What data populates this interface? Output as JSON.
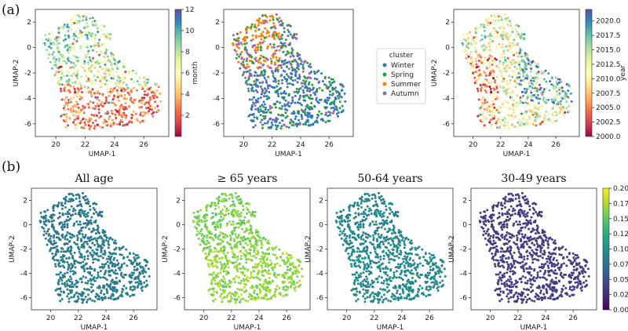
{
  "panel_labels": {
    "a": "(a)",
    "b": "(b)"
  },
  "chart_data": [
    {
      "type": "scatter",
      "panel": "a1",
      "title": "",
      "xlabel": "UMAP-1",
      "ylabel": "UMAP-2",
      "xlim": [
        18.6,
        27.7
      ],
      "ylim": [
        -7.0,
        3.0
      ],
      "xticks": [
        20,
        22,
        24,
        26
      ],
      "yticks": [
        2,
        0,
        -2,
        -4,
        -6
      ],
      "color_by": "month",
      "colorbar": {
        "label": "month",
        "range": [
          0,
          12
        ],
        "ticks": [
          2,
          4,
          6,
          8,
          10,
          12
        ],
        "colormap": "Spectral"
      }
    },
    {
      "type": "scatter",
      "panel": "a2",
      "title": "",
      "xlabel": "UMAP-1",
      "ylabel": "",
      "xlim": [
        18.6,
        27.7
      ],
      "ylim": [
        -7.0,
        3.0
      ],
      "xticks": [
        20,
        22,
        24,
        26
      ],
      "yticks": [
        2,
        0,
        -2,
        -4,
        -6
      ],
      "color_by": "cluster",
      "legend": {
        "title": "cluster",
        "placement": "right",
        "entries": [
          {
            "name": "Winter",
            "color": "#2f79b5"
          },
          {
            "name": "Spring",
            "color": "#2ca02c"
          },
          {
            "name": "Summer",
            "color": "#ff7f0e"
          },
          {
            "name": "Autumn",
            "color": "#9467bd"
          }
        ]
      }
    },
    {
      "type": "scatter",
      "panel": "a3",
      "title": "",
      "xlabel": "UMAP-1",
      "ylabel": "UMAP-2",
      "xlim": [
        18.6,
        27.7
      ],
      "ylim": [
        -7.0,
        3.0
      ],
      "xticks": [
        20,
        22,
        24,
        26
      ],
      "yticks": [
        2,
        0,
        -2,
        -4,
        -6
      ],
      "color_by": "year",
      "colorbar": {
        "label": "year",
        "range": [
          2000,
          2022
        ],
        "ticks": [
          "2000.0",
          "2002.5",
          "2005.0",
          "2007.5",
          "2010.0",
          "2012.5",
          "2015.0",
          "2017.5",
          "2020.0"
        ],
        "colormap": "Spectral"
      }
    },
    {
      "type": "scatter",
      "panel": "b1",
      "title": "All age",
      "xlabel": "UMAP-1",
      "ylabel": "UMAP-2",
      "xlim": [
        18.6,
        27.7
      ],
      "ylim": [
        -7.0,
        3.0
      ],
      "xticks": [
        20,
        22,
        24,
        26
      ],
      "yticks": [
        2,
        0,
        -2,
        -4,
        -6
      ],
      "color_by": "cvd rate",
      "cvd_rate_typical": 0.08
    },
    {
      "type": "scatter",
      "panel": "b2",
      "title": "≥ 65 years",
      "xlabel": "UMAP-1",
      "ylabel": "UMAP-2",
      "xlim": [
        18.6,
        27.7
      ],
      "ylim": [
        -7.0,
        3.0
      ],
      "xticks": [
        20,
        22,
        24,
        26
      ],
      "yticks": [
        2,
        0,
        -2,
        -4,
        -6
      ],
      "color_by": "cvd rate",
      "cvd_rate_typical": 0.16
    },
    {
      "type": "scatter",
      "panel": "b3",
      "title": "50-64 years",
      "xlabel": "UMAP-1",
      "ylabel": "UMAP-2",
      "xlim": [
        18.6,
        27.7
      ],
      "ylim": [
        -7.0,
        3.0
      ],
      "xticks": [
        20,
        22,
        24,
        26
      ],
      "yticks": [
        2,
        0,
        -2,
        -4,
        -6
      ],
      "color_by": "cvd rate",
      "cvd_rate_typical": 0.09
    },
    {
      "type": "scatter",
      "panel": "b4",
      "title": "30-49 years",
      "xlabel": "UMAP-1",
      "ylabel": "UMAP-2",
      "xlim": [
        18.6,
        27.7
      ],
      "ylim": [
        -7.0,
        3.0
      ],
      "xticks": [
        20,
        22,
        24,
        26
      ],
      "yticks": [
        2,
        0,
        -2,
        -4,
        -6
      ],
      "color_by": "cvd rate",
      "cvd_rate_typical": 0.035,
      "colorbar": {
        "label": "cvd rate",
        "range": [
          0,
          0.2
        ],
        "ticks": [
          "0.000",
          "0.025",
          "0.050",
          "0.075",
          "0.100",
          "0.125",
          "0.150",
          "0.175",
          "0.200"
        ],
        "colormap": "viridis"
      }
    }
  ]
}
